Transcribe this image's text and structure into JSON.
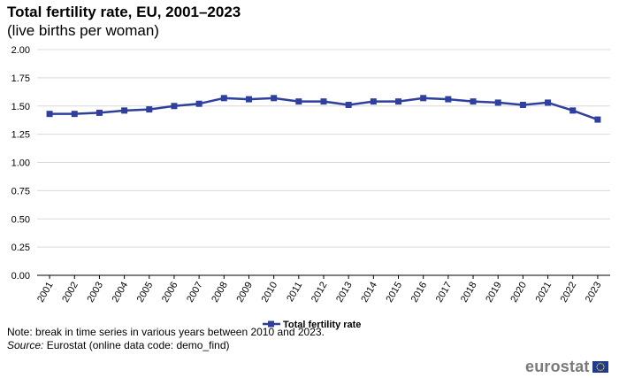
{
  "title": "Total fertility rate, EU, 2001–2023",
  "subtitle": "(live births per woman)",
  "note": "Note: break in time series in various years between 2010 and 2023.",
  "source": {
    "label": "Source:",
    "text": " Eurostat (online data code: demo_find)"
  },
  "logo": {
    "text": "eurostat"
  },
  "colors": {
    "series": "#2e3f9e",
    "grid": "#d9d9d9",
    "axis": "#000000"
  },
  "chart_data": {
    "type": "line",
    "x": [
      "2001",
      "2002",
      "2003",
      "2004",
      "2005",
      "2006",
      "2007",
      "2008",
      "2009",
      "2010",
      "2011",
      "2012",
      "2013",
      "2014",
      "2015",
      "2016",
      "2017",
      "2018",
      "2019",
      "2020",
      "2021",
      "2022",
      "2023"
    ],
    "series": [
      {
        "name": "Total fertility rate",
        "values": [
          1.43,
          1.43,
          1.44,
          1.46,
          1.47,
          1.5,
          1.52,
          1.57,
          1.56,
          1.57,
          1.54,
          1.54,
          1.51,
          1.54,
          1.54,
          1.57,
          1.56,
          1.54,
          1.53,
          1.51,
          1.53,
          1.46,
          1.38
        ]
      }
    ],
    "ylim": [
      0,
      2.0
    ],
    "yticks": [
      "0.00",
      "0.25",
      "0.50",
      "0.75",
      "1.00",
      "1.25",
      "1.50",
      "1.75",
      "2.00"
    ],
    "grid": true,
    "legend": "bottom-center"
  }
}
